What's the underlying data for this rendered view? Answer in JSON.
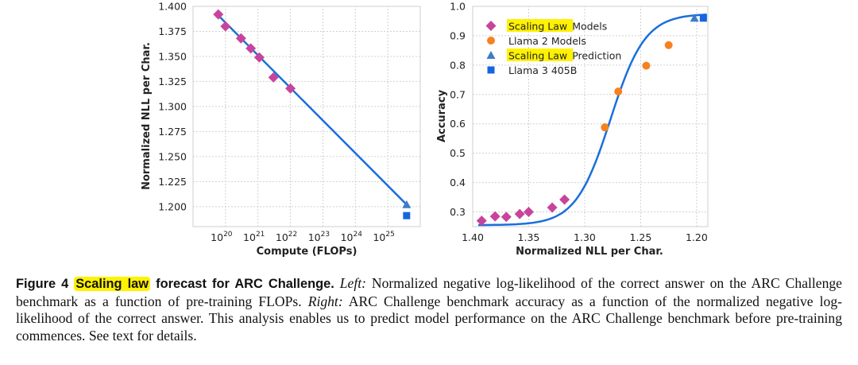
{
  "colors": {
    "diamond": "#c8449c",
    "llama2": "#f58220",
    "prediction": "#3d7cc9",
    "llama3": "#1565e0",
    "fit": "#1a6fdc",
    "highlight": "#fff200"
  },
  "chart_data": [
    {
      "type": "scatter",
      "xlabel": "Compute (FLOPs)",
      "ylabel": "Normalized NLL per Char.",
      "xscale": "log",
      "xlim": [
        1e+19,
        1e+26
      ],
      "ylim": [
        1.18,
        1.4
      ],
      "x_tick_bases": [
        "10",
        "10",
        "10",
        "10",
        "10",
        "10"
      ],
      "x_tick_exps": [
        "20",
        "21",
        "22",
        "23",
        "24",
        "25"
      ],
      "y_ticks": [
        "1.200",
        "1.225",
        "1.250",
        "1.275",
        "1.300",
        "1.325",
        "1.350",
        "1.375",
        "1.400"
      ],
      "grid": true,
      "series": [
        {
          "marker": "diamond",
          "x": [
            6e+19,
            1e+20,
            3e+20,
            6e+20,
            1.1e+21,
            3e+21,
            1e+22
          ],
          "y": [
            1.392,
            1.38,
            1.368,
            1.358,
            1.349,
            1.329,
            1.318
          ]
        },
        {
          "marker": "triangle",
          "x": [
            3.8e+25
          ],
          "y": [
            1.202
          ]
        },
        {
          "marker": "square",
          "x": [
            3.8e+25
          ],
          "y": [
            1.191
          ]
        },
        {
          "marker": "line",
          "x": [
            6e+19,
            3.8e+25
          ],
          "y": [
            1.391,
            1.202
          ]
        }
      ]
    },
    {
      "type": "scatter",
      "xlabel": "Normalized NLL per Char.",
      "ylabel": "Accuracy",
      "xlim": [
        1.4,
        1.19
      ],
      "x_reversed": true,
      "ylim": [
        0.25,
        1.0
      ],
      "x_ticks": [
        "1.40",
        "1.35",
        "1.30",
        "1.25",
        "1.20"
      ],
      "x_tick_values": [
        1.4,
        1.35,
        1.3,
        1.25,
        1.2
      ],
      "y_ticks": [
        "0.3",
        "0.4",
        "0.5",
        "0.6",
        "0.7",
        "0.8",
        "0.9",
        "1.0"
      ],
      "y_tick_values": [
        0.3,
        0.4,
        0.5,
        0.6,
        0.7,
        0.8,
        0.9,
        1.0
      ],
      "grid": true,
      "legend_position": "top-left",
      "legend": [
        {
          "marker": "diamond",
          "highlight": "Scaling Law",
          "rest": " Models"
        },
        {
          "marker": "circle",
          "highlight": "",
          "rest": "Llama 2 Models"
        },
        {
          "marker": "triangle",
          "highlight": "Scaling Law",
          "rest": " Prediction"
        },
        {
          "marker": "square",
          "highlight": "",
          "rest": "Llama 3 405B"
        }
      ],
      "series": [
        {
          "name": "Scaling Law Models",
          "marker": "diamond",
          "x": [
            1.392,
            1.38,
            1.37,
            1.358,
            1.35,
            1.329,
            1.318
          ],
          "y": [
            0.27,
            0.285,
            0.283,
            0.293,
            0.3,
            0.315,
            0.342
          ]
        },
        {
          "name": "Llama 2 Models",
          "marker": "circle",
          "x": [
            1.282,
            1.27,
            1.245,
            1.225
          ],
          "y": [
            0.588,
            0.71,
            0.798,
            0.868
          ]
        },
        {
          "name": "Scaling Law Prediction",
          "marker": "triangle",
          "x": [
            1.202
          ],
          "y": [
            0.96
          ]
        },
        {
          "name": "Llama 3 405B",
          "marker": "square",
          "x": [
            1.194
          ],
          "y": [
            0.96
          ]
        }
      ]
    }
  ],
  "caption": {
    "figure_label": "Figure 4",
    "highlight": "Scaling law",
    "bold_rest": " forecast for ARC Challenge.",
    "left_label": "Left:",
    "left_text": " Normalized negative log-likelihood of the correct answer on the ARC Challenge benchmark as a function of pre-training FLOPs.",
    "right_label": "Right:",
    "right_text": " ARC Challenge benchmark accuracy as a function of the normalized negative log-likelihood of the correct answer. This analysis enables us to predict model performance on the ARC Challenge benchmark before pre-training commences. See text for details."
  }
}
